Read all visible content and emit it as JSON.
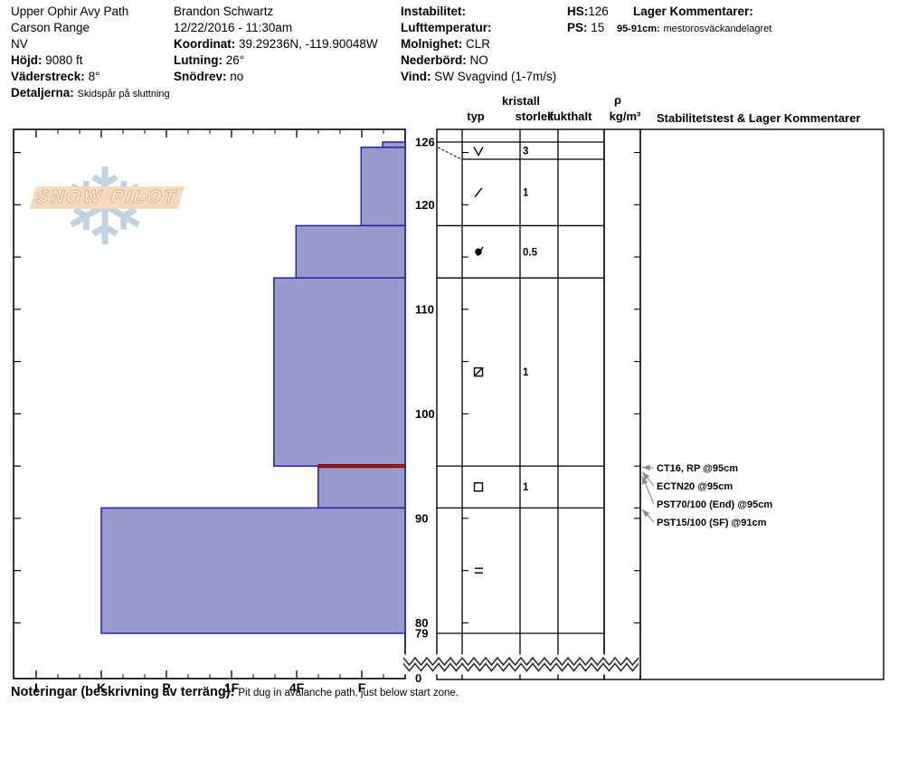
{
  "header": {
    "location": {
      "pit_name": "Upper Ophir Avy Path",
      "range": "Carson Range",
      "state": "NV",
      "hojd_label": "Höjd:",
      "hojd_value": "9080 ft",
      "vaderstreck_label": "Väderstreck:",
      "vaderstreck_value": "8°",
      "detaljerna_label": "Detaljerna:",
      "detaljerna_value": "Skidspår på sluttning"
    },
    "observation": {
      "observer": "Brandon Schwartz",
      "datetime": "12/22/2016 - 11:30am",
      "koordinat_label": "Koordinat:",
      "koordinat_value": "39.29236N, -119.90048W",
      "lutning_label": "Lutning:",
      "lutning_value": "26°",
      "snodrev_label": "Snödrev:",
      "snodrev_value": "no"
    },
    "conditions": {
      "instabilitet_label": "Instabilitet:",
      "lufttemperatur_label": "Lufttemperatur:",
      "molnighet_label": "Molnighet:",
      "molnighet_value": "CLR",
      "nederbord_label": "Nederbörd:",
      "nederbord_value": "NO",
      "vind_label": "Vind:",
      "vind_value": "SW Svagvind (1-7m/s)"
    },
    "summary": {
      "hs_label": "HS:",
      "hs_value": "126",
      "ps_label": "PS:",
      "ps_value": "15"
    },
    "layer_comments": {
      "title": "Lager Kommentarer:",
      "comment_depth": "95-91cm:",
      "comment_text": "mestorosväckandelagret"
    }
  },
  "watermark": {
    "text": "SNOW PILOT"
  },
  "table": {
    "headers": {
      "typ": "typ",
      "kristall": "kristall",
      "storlek": "storlek",
      "fukthalt": "fukthalt",
      "rho": "ρ",
      "rho_units": "kg/m³",
      "stability": "Stabilitetstest & Lager Kommentarer"
    }
  },
  "notes": {
    "label": "Noteringar (beskrivning av terräng):",
    "text": "Pit dug in avalanche path, just below start zone."
  },
  "chart_data": {
    "type": "bar",
    "subtype": "snowpit-hardness-profile",
    "orientation": "horizontal-bars, depth on y-axis, hand hardness on x-axis",
    "hs_cm": 126,
    "depth_axis_labels": [
      126,
      120,
      110,
      100,
      90,
      80,
      79
    ],
    "depth_axis_bottom_label": "0",
    "hardness_axis_labels": [
      "I",
      "K",
      "P",
      "1F",
      "4F",
      "F"
    ],
    "layers": [
      {
        "top_cm": 126,
        "bottom_cm": 125.5,
        "hardness": "F-",
        "hardness_index": 5.32,
        "grain_symbol": "V",
        "grain_type": "surface hoar",
        "size_mm": "3"
      },
      {
        "top_cm": 125.5,
        "bottom_cm": 118,
        "hardness": "F",
        "hardness_index": 4.99,
        "grain_symbol": "/",
        "grain_type": "decomposing fragments",
        "size_mm": "1"
      },
      {
        "top_cm": 118,
        "bottom_cm": 113,
        "hardness": "4F",
        "hardness_index": 3.99,
        "grain_symbol": "o/",
        "grain_type": "rounds-decomposing mix",
        "size_mm": "0.5"
      },
      {
        "top_cm": 113,
        "bottom_cm": 95,
        "hardness": "4F+",
        "hardness_index": 3.65,
        "grain_symbol": "sq/",
        "grain_type": "rounding facets",
        "size_mm": "1"
      },
      {
        "top_cm": 95,
        "bottom_cm": 91,
        "hardness": "4F-",
        "hardness_index": 4.33,
        "grain_symbol": "sq",
        "grain_type": "facets",
        "size_mm": "1",
        "flagged": true
      },
      {
        "top_cm": 91,
        "bottom_cm": 79,
        "hardness": "K",
        "hardness_index": 1.0,
        "grain_symbol": "=",
        "grain_type": "crust",
        "size_mm": ""
      }
    ],
    "flag_line": {
      "depth_cm": 95,
      "color": "#b31414"
    },
    "stability_tests": [
      {
        "label": "CT16, RP @95cm",
        "depth_cm": 95
      },
      {
        "label": "ECTN20 @95cm",
        "depth_cm": 95
      },
      {
        "label": "PST70/100 (End) @95cm",
        "depth_cm": 95
      },
      {
        "label": "PST15/100 (SF) @91cm",
        "depth_cm": 91
      }
    ],
    "colors": {
      "bar_fill": "#9a99cd",
      "bar_border": "#2323a5",
      "arrow": "#8a8a8a"
    },
    "axis_break": true
  }
}
